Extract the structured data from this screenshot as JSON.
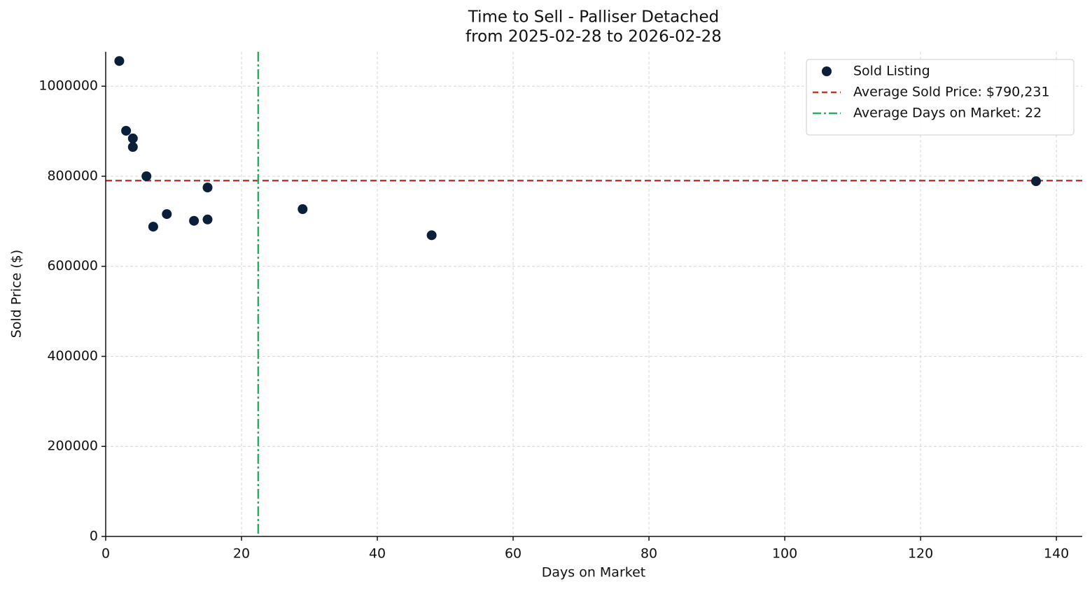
{
  "chart_data": {
    "type": "scatter",
    "title": "Time to Sell - Palliser Detached",
    "subtitle": "from 2025-02-28 to 2026-02-28",
    "x_label": "Days on Market",
    "y_label": "Sold Price ($)",
    "x": [
      2,
      3,
      4,
      4,
      6,
      7,
      9,
      13,
      15,
      15,
      29,
      48,
      137
    ],
    "series": [
      {
        "name": "Sold Listing",
        "color": "#0b1f3a",
        "values": [
          1056000,
          901000,
          884000,
          865000,
          800000,
          688000,
          716000,
          701000,
          704000,
          775000,
          727000,
          669000,
          789000
        ]
      }
    ],
    "hlines": [
      {
        "name": "Average Sold Price: $790,231",
        "value": 790231,
        "color": "#c0392b"
      }
    ],
    "vlines": [
      {
        "name": "Average Days on Market: 22",
        "value": 22.46,
        "color": "#27ae60"
      }
    ],
    "xlim": [
      0,
      143.8
    ],
    "xticks": [
      0,
      20,
      40,
      60,
      80,
      100,
      120,
      140
    ],
    "ylim": [
      0,
      1076500
    ],
    "yticks": [
      0,
      200000,
      400000,
      600000,
      800000,
      1000000
    ],
    "grid": true,
    "legend": "upper right"
  }
}
